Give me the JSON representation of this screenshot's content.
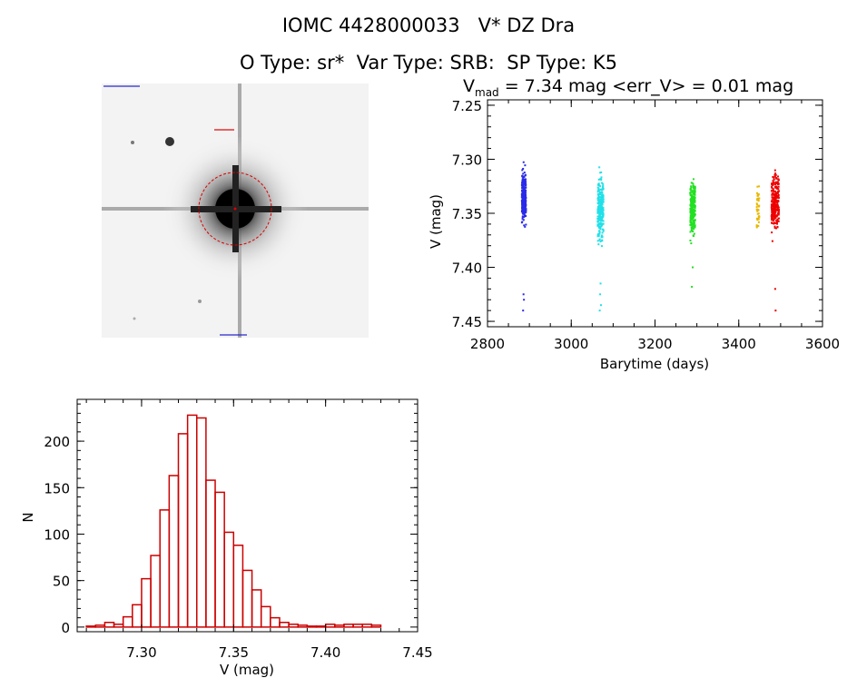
{
  "header": {
    "title_line1": "IOMC 4428000033   V* DZ Dra",
    "title_line2": "O Type: sr*  Var Type: SRB:  SP Type: K5"
  },
  "lightcurve": {
    "title_prefix": "V",
    "title_sub": "mad",
    "title_rest": " = 7.34 mag <err_V> = 0.01 mag"
  },
  "colors": {
    "axis": "#000000",
    "hist_bar": "#cc0000",
    "season_1": "#2a2ae8",
    "season_2": "#22e0e8",
    "season_3": "#22e022",
    "season_4": "#e8b800",
    "season_5": "#ee0000",
    "aperture": "#dd0000"
  },
  "chart_data": [
    {
      "type": "scatter",
      "xlabel": "Barytime (days)",
      "ylabel": "V (mag)",
      "xlim": [
        2800,
        3600
      ],
      "ylim": [
        7.455,
        7.245
      ],
      "y_inverted": true,
      "xticks": [
        2800,
        3000,
        3200,
        3400,
        3600
      ],
      "xtick_labels": [
        "2800",
        "3000",
        "3200",
        "3400",
        "3600"
      ],
      "yticks": [
        7.25,
        7.3,
        7.35,
        7.4,
        7.45
      ],
      "ytick_labels": [
        "7.25",
        "7.30",
        "7.35",
        "7.40",
        "7.45"
      ],
      "series": [
        {
          "color_key": "season_1",
          "x_range": [
            2882,
            2892
          ],
          "y_core": [
            7.3,
            7.37
          ],
          "y_extent": [
            7.28,
            7.39
          ],
          "outliers": [
            [
              2886,
              7.425
            ],
            [
              2887,
              7.43
            ],
            [
              2885,
              7.44
            ]
          ]
        },
        {
          "color_key": "season_2",
          "x_range": [
            3063,
            3077
          ],
          "y_core": [
            7.3,
            7.39
          ],
          "y_extent": [
            7.27,
            7.39
          ],
          "outliers": [
            [
              3070,
              7.415
            ],
            [
              3069,
              7.425
            ],
            [
              3071,
              7.435
            ],
            [
              3068,
              7.44
            ]
          ]
        },
        {
          "color_key": "season_3",
          "x_range": [
            3284,
            3296
          ],
          "y_core": [
            7.31,
            7.38
          ],
          "y_extent": [
            7.285,
            7.4
          ],
          "outliers": [
            [
              3288,
              7.418
            ],
            [
              3290,
              7.4
            ]
          ]
        },
        {
          "color_key": "season_4",
          "x_range": [
            3443,
            3449
          ],
          "y_core": [
            7.32,
            7.37
          ],
          "y_extent": [
            7.315,
            7.39
          ],
          "outliers": []
        },
        {
          "color_key": "season_5",
          "x_range": [
            3478,
            3496
          ],
          "y_core": [
            7.3,
            7.38
          ],
          "y_extent": [
            7.28,
            7.385
          ],
          "outliers": [
            [
              3487,
              7.42
            ],
            [
              3488,
              7.44
            ]
          ]
        }
      ]
    },
    {
      "type": "bar",
      "subtype": "histogram",
      "xlabel": "V (mag)",
      "ylabel": "N",
      "xlim": [
        7.265,
        7.45
      ],
      "ylim": [
        -5,
        245
      ],
      "xticks": [
        7.3,
        7.35,
        7.4,
        7.45
      ],
      "xtick_labels": [
        "7.30",
        "7.35",
        "7.40",
        "7.45"
      ],
      "yticks": [
        0,
        50,
        100,
        150,
        200
      ],
      "ytick_labels": [
        "0",
        "50",
        "100",
        "150",
        "200"
      ],
      "bin_width": 0.005,
      "bin_start": 7.27,
      "values": [
        1,
        2,
        5,
        3,
        11,
        24,
        52,
        77,
        126,
        163,
        208,
        228,
        225,
        158,
        145,
        102,
        88,
        61,
        40,
        22,
        10,
        5,
        3,
        2,
        1,
        1,
        3,
        2,
        3,
        3,
        3,
        2
      ]
    }
  ]
}
